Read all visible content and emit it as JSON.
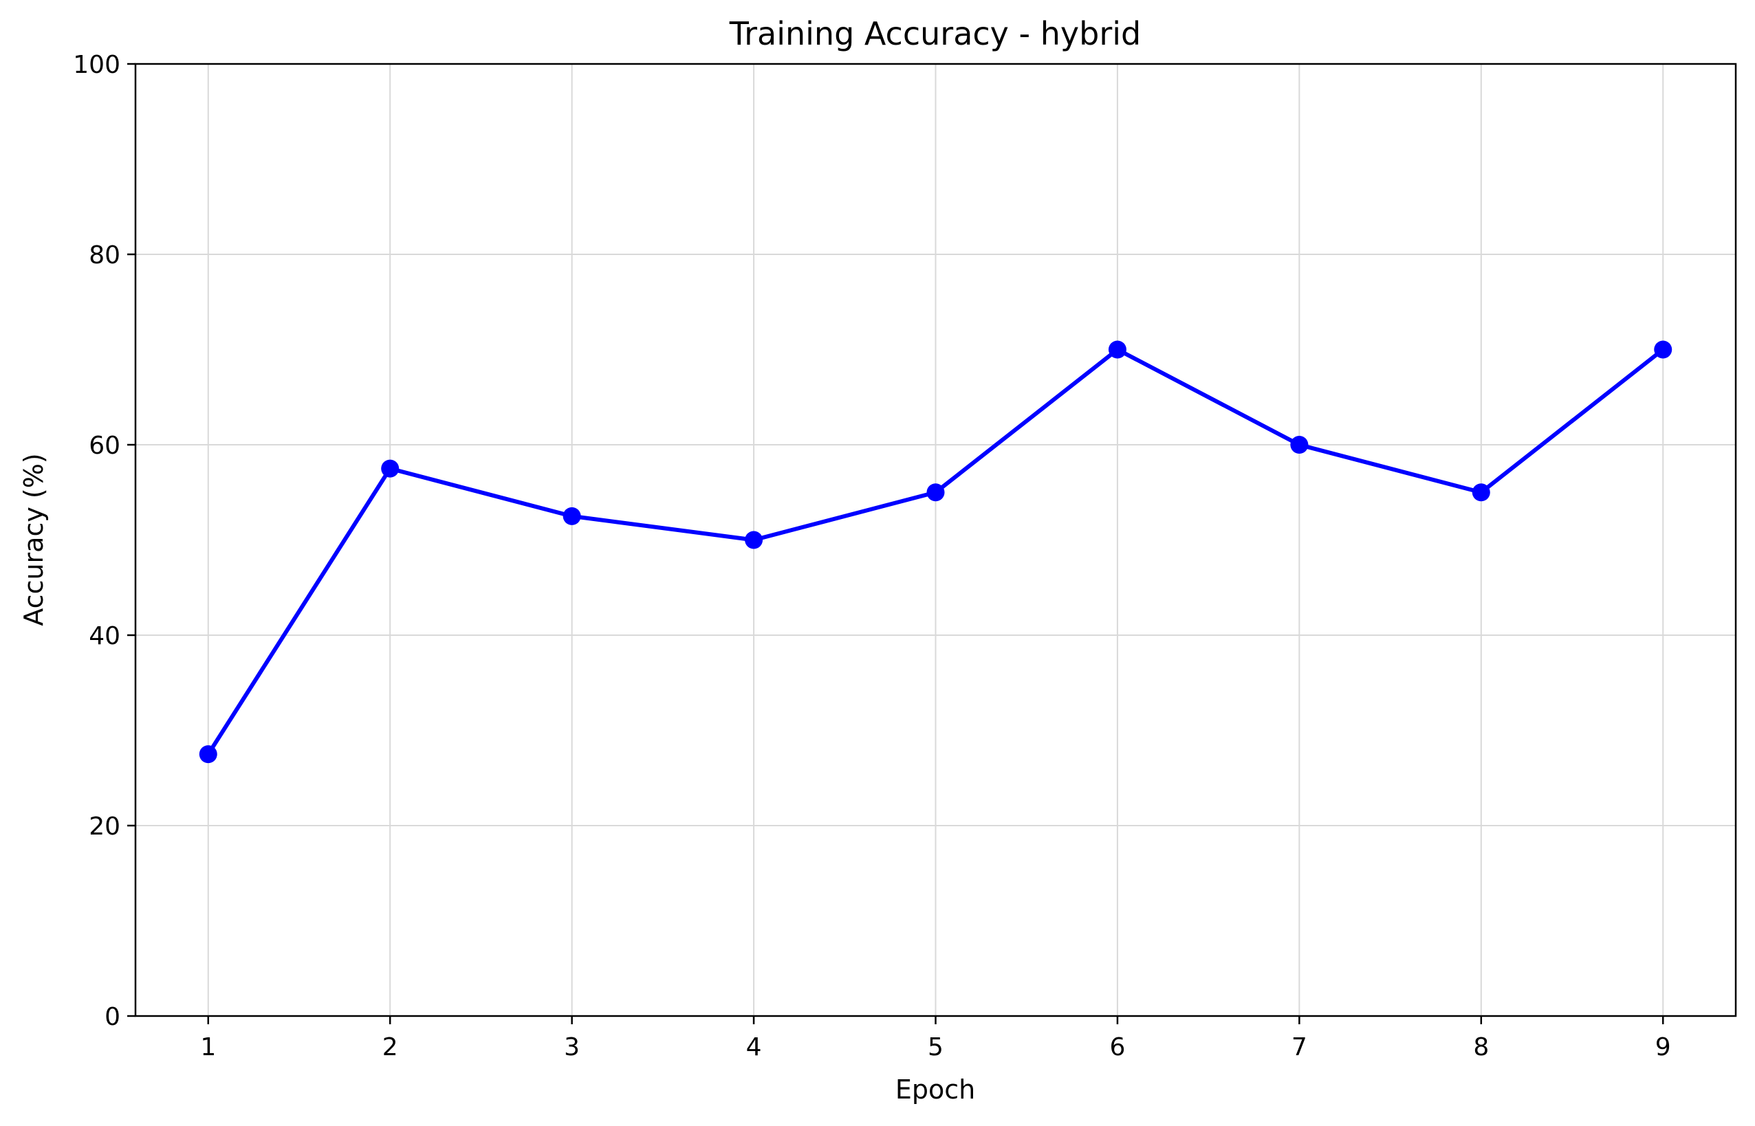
{
  "chart_data": {
    "type": "line",
    "title": "Training Accuracy - hybrid",
    "xlabel": "Epoch",
    "ylabel": "Accuracy (%)",
    "x": [
      1,
      2,
      3,
      4,
      5,
      6,
      7,
      8,
      9
    ],
    "xlim": [
      0.6,
      9.4
    ],
    "ylim": [
      0,
      100
    ],
    "xticks": [
      "1",
      "2",
      "3",
      "4",
      "5",
      "6",
      "7",
      "8",
      "9"
    ],
    "yticks": [
      "0",
      "20",
      "40",
      "60",
      "80",
      "100"
    ],
    "grid": true,
    "legend": "none",
    "series": [
      {
        "values": [
          27.5,
          57.5,
          52.5,
          50,
          55,
          70,
          60,
          55,
          70
        ],
        "color": "#0000ff",
        "marker": "circle"
      }
    ]
  }
}
